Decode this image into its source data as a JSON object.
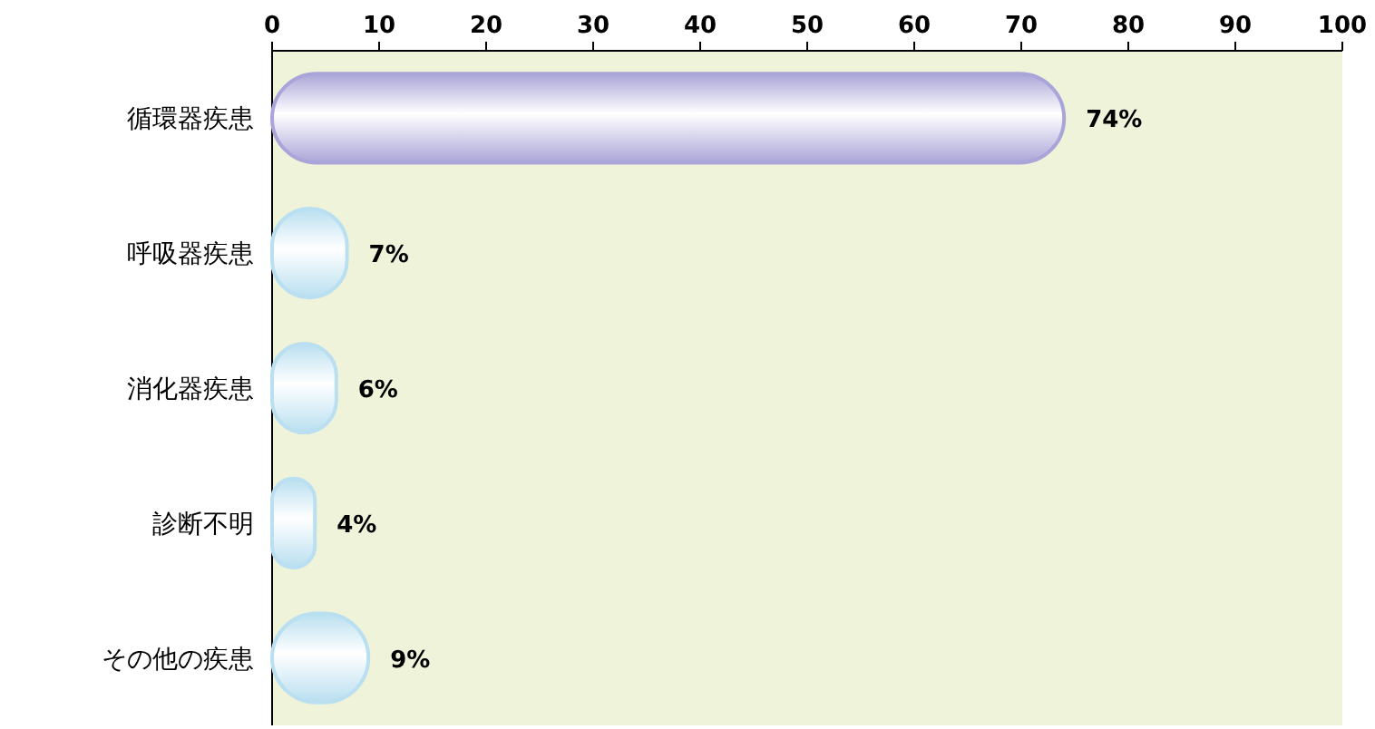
{
  "chart_data": {
    "type": "bar",
    "orientation": "horizontal",
    "categories": [
      "循環器疾患",
      "呼吸器疾患",
      "消化器疾患",
      "診断不明",
      "その他の疾患"
    ],
    "values": [
      74,
      7,
      6,
      4,
      9
    ],
    "colors": [
      "#aaa5d8",
      "#b9dff0",
      "#b9dff0",
      "#b9dff0",
      "#b9dff0"
    ],
    "value_labels": [
      "74%",
      "7%",
      "6%",
      "4%",
      "9%"
    ],
    "xlim": [
      0,
      100
    ],
    "xticks": [
      0,
      10,
      20,
      30,
      40,
      50,
      60,
      70,
      80,
      90,
      100
    ],
    "grid": false
  }
}
